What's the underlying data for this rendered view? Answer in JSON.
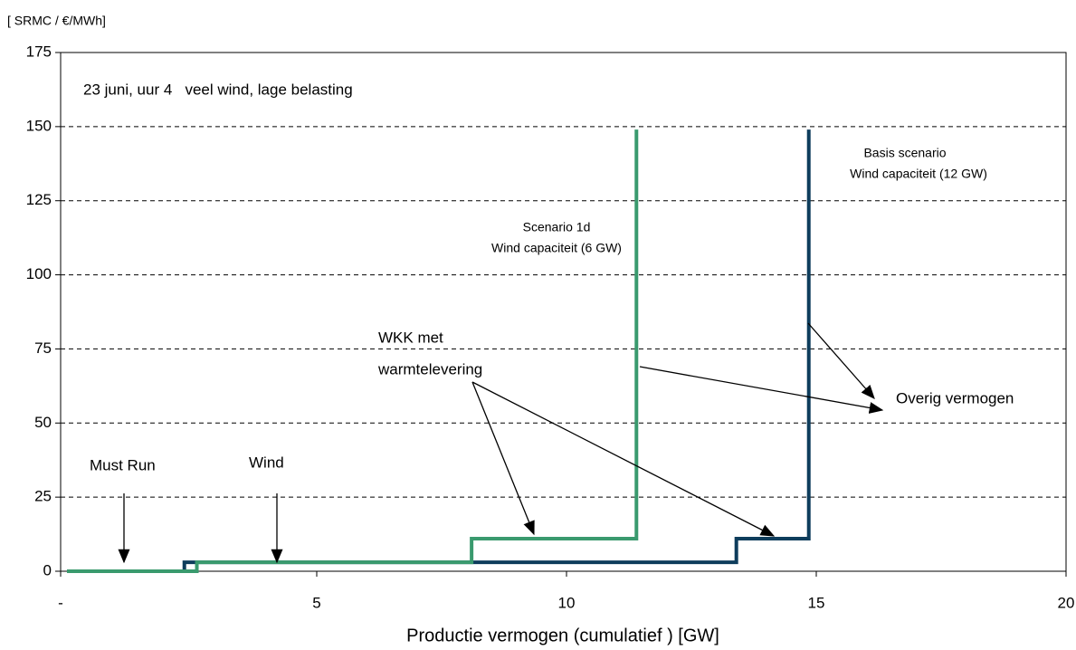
{
  "chart_data": {
    "type": "line",
    "y_label": "[ SRMC / €/MWh]",
    "x_label": "Productie vermogen (cumulatief ) [GW]",
    "xlim": [
      0,
      20
    ],
    "ylim": [
      0,
      175
    ],
    "xticks": [
      {
        "value": 0,
        "label": "-"
      },
      5,
      10,
      15,
      20
    ],
    "yticks": [
      0,
      25,
      50,
      75,
      100,
      125,
      150,
      175
    ],
    "grid": true,
    "series": [
      {
        "color": "#0e3d5c",
        "x": [
          0,
          2.35,
          2.35,
          13.4,
          13.4,
          14.85,
          14.85
        ],
        "values": [
          0,
          0,
          3,
          3,
          11,
          11,
          149
        ]
      },
      {
        "color": "#3a9a6e",
        "x": [
          0,
          2.6,
          2.6,
          8.1,
          8.1,
          11.4,
          11.4
        ],
        "values": [
          0,
          0,
          3,
          3,
          11,
          11,
          149
        ]
      }
    ],
    "annotations": [
      "23 juni, uur 4   veel wind, lage belasting",
      "Scenario 1d",
      "Wind capaciteit (6 GW)",
      "Basis scenario",
      "Wind capaciteit (12 GW)",
      "WKK met",
      "warmtelevering",
      "Overig vermogen",
      "Must Run",
      "Wind"
    ]
  }
}
